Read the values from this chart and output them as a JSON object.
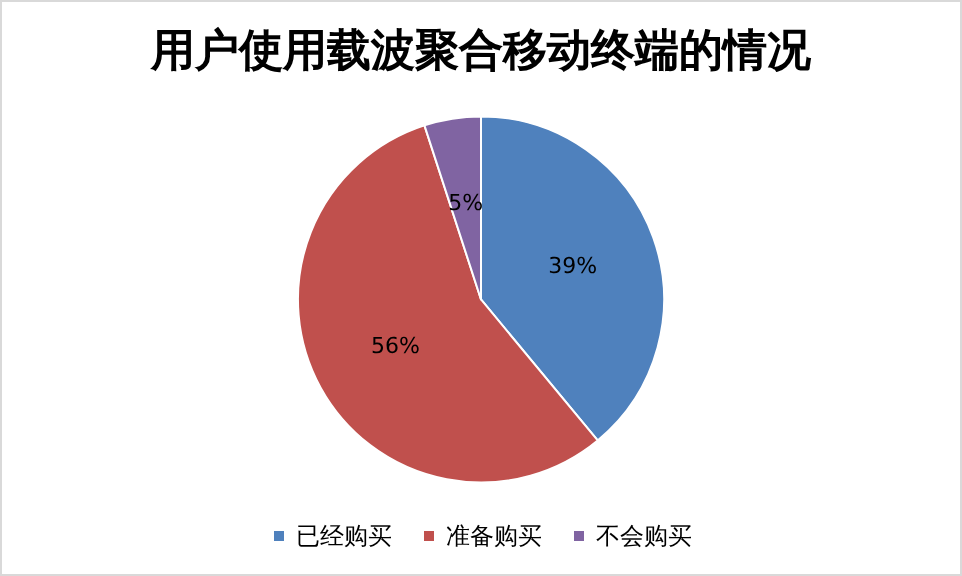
{
  "chart_data": {
    "type": "pie",
    "title": "用户使用载波聚合移动终端的情况",
    "categories": [
      "已经购买",
      "准备购买",
      "不会购买"
    ],
    "values": [
      39,
      56,
      5
    ],
    "colors": [
      "#4f81bd",
      "#c0504d",
      "#8064a2"
    ],
    "value_labels": [
      "39%",
      "56%",
      "5%"
    ],
    "legend": "bottom"
  }
}
